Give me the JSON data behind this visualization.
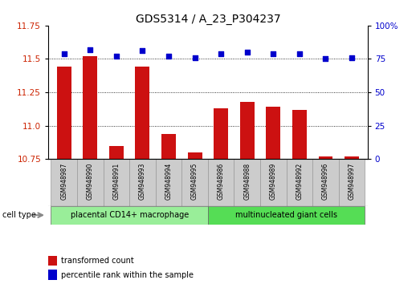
{
  "title": "GDS5314 / A_23_P304237",
  "samples": [
    "GSM948987",
    "GSM948990",
    "GSM948991",
    "GSM948993",
    "GSM948994",
    "GSM948995",
    "GSM948986",
    "GSM948988",
    "GSM948989",
    "GSM948992",
    "GSM948996",
    "GSM948997"
  ],
  "transformed_count": [
    11.44,
    11.52,
    10.85,
    11.44,
    10.94,
    10.8,
    11.13,
    11.18,
    11.14,
    11.12,
    10.77,
    10.77
  ],
  "percentile_rank": [
    79,
    82,
    77,
    81,
    77,
    76,
    79,
    80,
    79,
    79,
    75,
    76
  ],
  "group1_label": "placental CD14+ macrophage",
  "group2_label": "multinucleated giant cells",
  "group1_count": 6,
  "group2_count": 6,
  "ylim_left": [
    10.75,
    11.75
  ],
  "ylim_right": [
    0,
    100
  ],
  "yticks_left": [
    10.75,
    11.0,
    11.25,
    11.5,
    11.75
  ],
  "yticks_right": [
    0,
    25,
    50,
    75,
    100
  ],
  "bar_color": "#cc1111",
  "dot_color": "#0000cc",
  "bar_baseline": 10.75,
  "legend_bar_label": "transformed count",
  "legend_dot_label": "percentile rank within the sample",
  "cell_type_label": "cell type",
  "group1_color": "#99ee99",
  "group2_color": "#55dd55",
  "sample_box_color": "#cccccc",
  "sample_box_edge": "#999999",
  "title_fontsize": 10,
  "tick_fontsize": 7.5,
  "sample_fontsize": 5.5,
  "label_fontsize": 7,
  "dotted_lines": [
    11.0,
    11.25,
    11.5
  ],
  "hline_color": "black",
  "hline_lw": 0.6
}
